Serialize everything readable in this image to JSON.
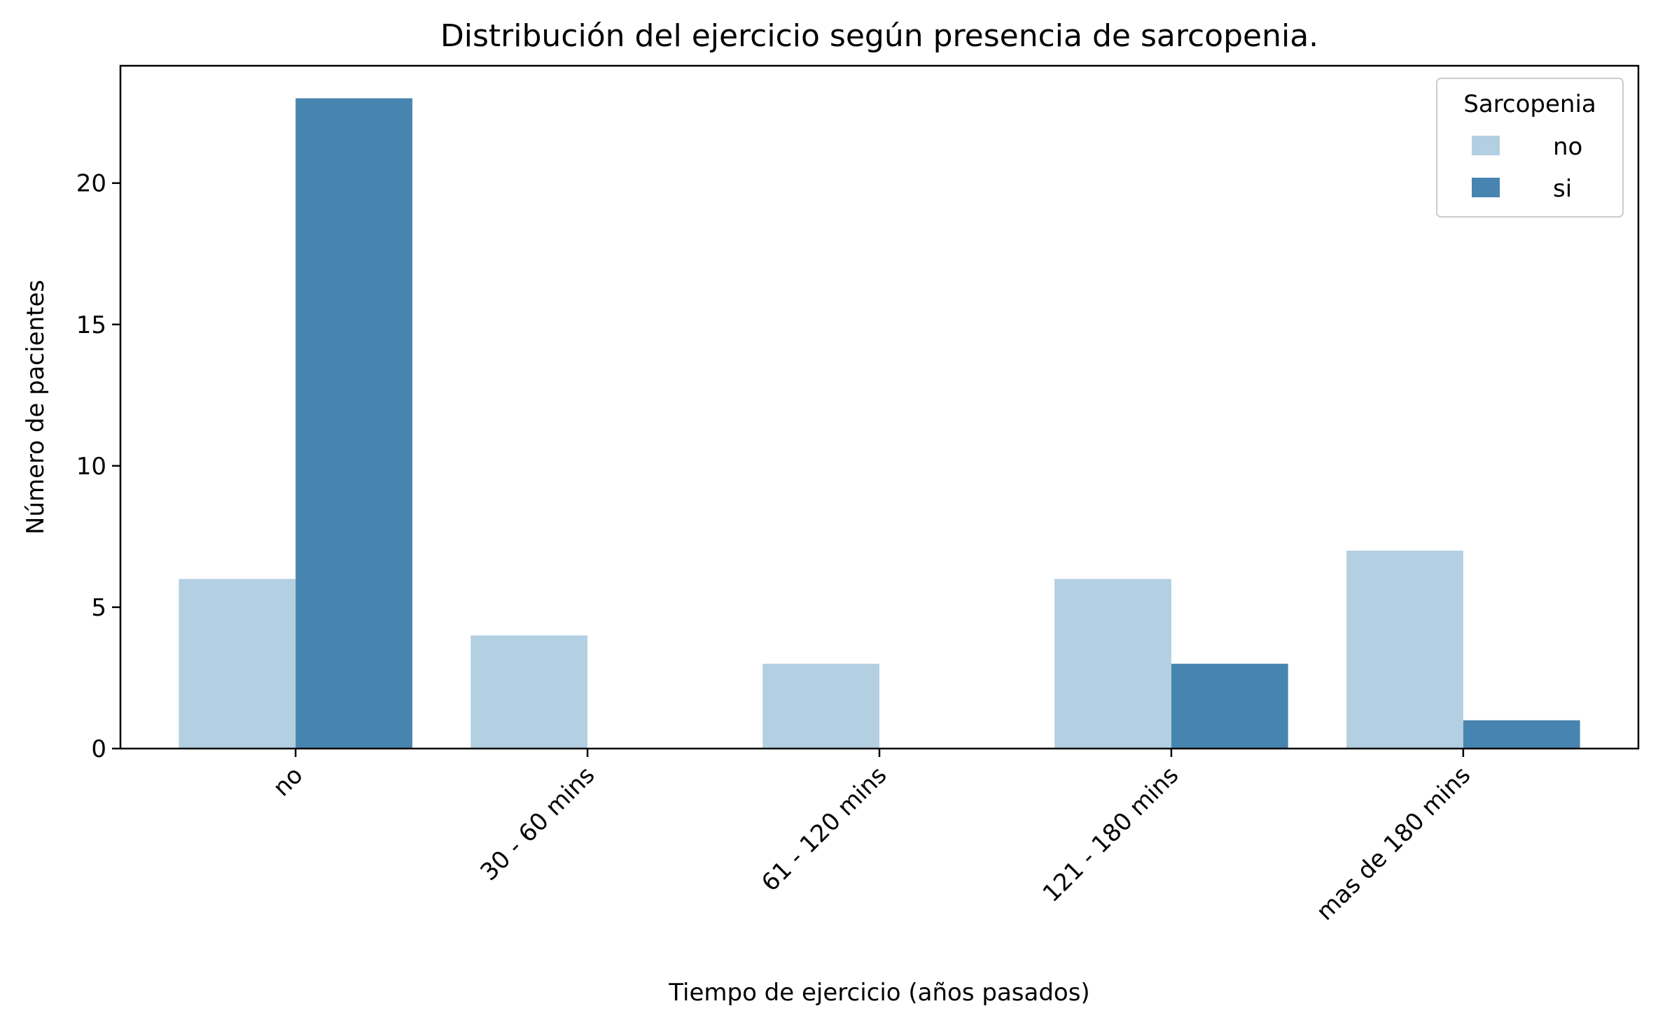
{
  "chart_data": {
    "type": "bar",
    "title": "Distribución del ejercicio según presencia de sarcopenia.",
    "xlabel": "Tiempo de ejercicio (años pasados)",
    "ylabel": "Número de pacientes",
    "categories": [
      "no",
      "30 - 60 mins",
      "61 - 120 mins",
      "121 - 180 mins",
      "mas de 180 mins"
    ],
    "series": [
      {
        "name": "no",
        "values": [
          6,
          4,
          3,
          6,
          7
        ],
        "color": "#b3cfe2"
      },
      {
        "name": "si",
        "values": [
          23,
          0,
          0,
          3,
          1
        ],
        "color": "#4884b0"
      }
    ],
    "ylim": [
      0,
      24.15
    ],
    "yticks": [
      0,
      5,
      10,
      15,
      20
    ],
    "grid": false,
    "legend": {
      "title": "Sarcopenia",
      "placement": "top-right"
    }
  }
}
